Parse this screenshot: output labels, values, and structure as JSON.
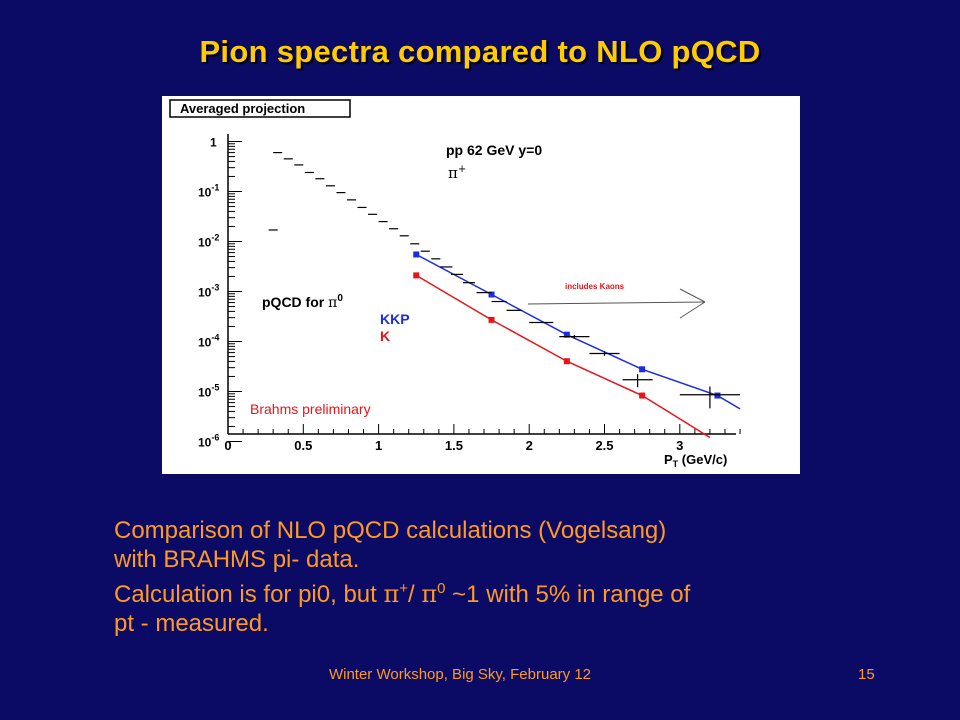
{
  "slide": {
    "title": "Pion spectra compared to NLO pQCD",
    "body_lines": [
      "Comparison of NLO pQCD calculations (Vogelsang)",
      "with BRAHMS pi- data.",
      "Calculation is for pi0, but π+/ π0 ~1 with 5% in range of",
      "pt - measured."
    ],
    "body_line3": {
      "part1": "Calculation is for pi0, but ",
      "pi_a": "π",
      "sup_a": "+",
      "part2": "/ ",
      "pi_b": "π",
      "sup_b": "0",
      "part3": " ~1 with 5% in range of"
    },
    "footer": "Winter Workshop, Big Sky, February 12",
    "page_number": "15"
  },
  "colors": {
    "background": "#0b0b66",
    "title": "#ffcc00",
    "text": "#ff9922",
    "kkp": "#1b2de0",
    "k": "#e8141a",
    "annotation": "#e8141a"
  },
  "chart_data": {
    "type": "scatter",
    "title": "Averaged projection",
    "xlabel": "P",
    "xlabel_sub": "T",
    "xlabel_unit": " (GeV/c)",
    "ylabel": "",
    "xlim": [
      0,
      3.4
    ],
    "ylim": [
      1e-06,
      2
    ],
    "yscale": "log",
    "x_ticks": [
      "0",
      "0.5",
      "1",
      "1.5",
      "2",
      "2.5",
      "3"
    ],
    "x_tick_values": [
      0,
      0.5,
      1,
      1.5,
      2,
      2.5,
      3
    ],
    "y_ticks": [
      {
        "base": "1",
        "exp": ""
      },
      {
        "base": "10",
        "exp": "-1"
      },
      {
        "base": "10",
        "exp": "-2"
      },
      {
        "base": "10",
        "exp": "-3"
      },
      {
        "base": "10",
        "exp": "-4"
      },
      {
        "base": "10",
        "exp": "-5"
      },
      {
        "base": "10",
        "exp": "-6"
      }
    ],
    "y_tick_values": [
      1,
      0.1,
      0.01,
      0.001,
      0.0001,
      1e-05,
      1e-06
    ],
    "legend_system": "pp 62 GeV y=0",
    "legend_particle": "π",
    "legend_particle_sup": "+",
    "pqcd_label": "pQCD for ",
    "pqcd_particle": "π",
    "pqcd_particle_sup": "0",
    "preliminary_label": "Brahms preliminary",
    "kaon_note": "includes Kaons",
    "series": [
      {
        "name": "KKP",
        "color": "#1b2de0",
        "points": [
          [
            1.25,
            0.0055
          ],
          [
            1.75,
            0.00087
          ],
          [
            2.25,
            0.000137
          ],
          [
            2.75,
            2.78e-05
          ],
          [
            3.25,
            8.3e-06
          ]
        ],
        "curve_end": [
          3.4,
          4.5e-06
        ]
      },
      {
        "name": "K",
        "color": "#e8141a",
        "points": [
          [
            1.25,
            0.0021
          ],
          [
            1.75,
            0.000271
          ],
          [
            2.25,
            4.03e-05
          ],
          [
            2.75,
            8.3e-06
          ]
        ],
        "curve_end": [
          3.2,
          1.2e-06
        ]
      },
      {
        "name": "BRAHMS pi data",
        "color": "#000000",
        "points": [
          {
            "x": 0.3,
            "y": 0.017,
            "xerr": 0.03,
            "yerr": 0
          },
          {
            "x": 0.33,
            "y": 0.6,
            "xerr": 0.03,
            "yerr": 0
          },
          {
            "x": 0.4,
            "y": 0.45,
            "xerr": 0.03,
            "yerr": 0
          },
          {
            "x": 0.47,
            "y": 0.34,
            "xerr": 0.03,
            "yerr": 0
          },
          {
            "x": 0.54,
            "y": 0.24,
            "xerr": 0.03,
            "yerr": 0
          },
          {
            "x": 0.61,
            "y": 0.18,
            "xerr": 0.03,
            "yerr": 0
          },
          {
            "x": 0.68,
            "y": 0.13,
            "xerr": 0.03,
            "yerr": 0
          },
          {
            "x": 0.75,
            "y": 0.095,
            "xerr": 0.03,
            "yerr": 0
          },
          {
            "x": 0.82,
            "y": 0.068,
            "xerr": 0.03,
            "yerr": 0
          },
          {
            "x": 0.89,
            "y": 0.048,
            "xerr": 0.03,
            "yerr": 0
          },
          {
            "x": 0.96,
            "y": 0.035,
            "xerr": 0.03,
            "yerr": 0
          },
          {
            "x": 1.03,
            "y": 0.025,
            "xerr": 0.03,
            "yerr": 0
          },
          {
            "x": 1.1,
            "y": 0.018,
            "xerr": 0.03,
            "yerr": 0
          },
          {
            "x": 1.17,
            "y": 0.013,
            "xerr": 0.03,
            "yerr": 0
          },
          {
            "x": 1.24,
            "y": 0.009,
            "xerr": 0.03,
            "yerr": 0
          },
          {
            "x": 1.31,
            "y": 0.0064,
            "xerr": 0.03,
            "yerr": 0
          },
          {
            "x": 1.38,
            "y": 0.0045,
            "xerr": 0.03,
            "yerr": 0
          },
          {
            "x": 1.45,
            "y": 0.0031,
            "xerr": 0.04,
            "yerr": 0
          },
          {
            "x": 1.52,
            "y": 0.0022,
            "xerr": 0.04,
            "yerr": 0
          },
          {
            "x": 1.6,
            "y": 0.0015,
            "xerr": 0.04,
            "yerr": 0
          },
          {
            "x": 1.7,
            "y": 0.00095,
            "xerr": 0.05,
            "yerr": 0
          },
          {
            "x": 1.8,
            "y": 0.00063,
            "xerr": 0.05,
            "yerr": 0
          },
          {
            "x": 1.9,
            "y": 0.00042,
            "xerr": 0.05,
            "yerr": 0
          },
          {
            "x": 2.08,
            "y": 0.00024,
            "xerr": 0.08,
            "yerr": 0
          },
          {
            "x": 2.3,
            "y": 0.000125,
            "xerr": 0.1,
            "yerr": 1e-05
          },
          {
            "x": 2.5,
            "y": 5.75e-05,
            "xerr": 0.1,
            "yerr": 6e-06
          },
          {
            "x": 2.72,
            "y": 1.72e-05,
            "xerr": 0.1,
            "yerr": 5e-06
          },
          {
            "x": 3.2,
            "y": 8.6e-06,
            "xerr": 0.2,
            "yerr": 4e-06
          }
        ]
      }
    ]
  }
}
